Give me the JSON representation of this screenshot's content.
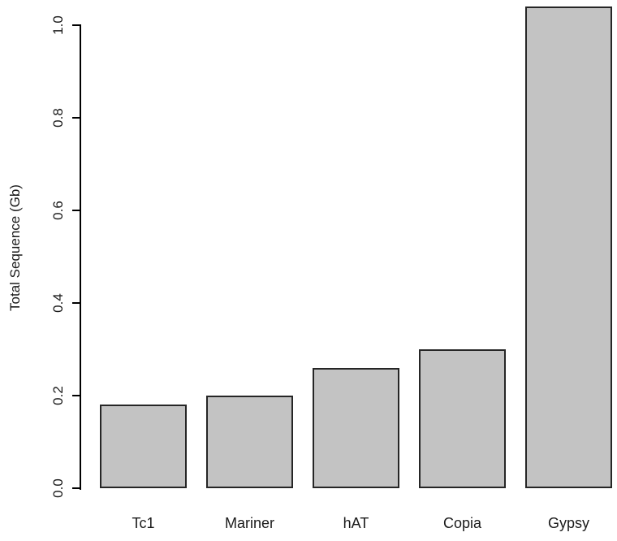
{
  "chart_data": {
    "type": "bar",
    "categories": [
      "Tc1",
      "Mariner",
      "hAT",
      "Copia",
      "Gypsy"
    ],
    "values": [
      0.18,
      0.2,
      0.26,
      0.3,
      1.04
    ],
    "title": "",
    "xlabel": "",
    "ylabel": "Total Sequence (Gb)",
    "ylim": [
      0,
      1.05
    ],
    "yticks": [
      0.0,
      0.2,
      0.4,
      0.6,
      0.8,
      1.0
    ],
    "ytick_labels": [
      "0.0",
      "0.2",
      "0.4",
      "0.6",
      "0.8",
      "1.0"
    ],
    "grid": false,
    "legend": false,
    "colors": {
      "bar_fill": "#c3c3c3",
      "bar_border": "#262626",
      "axis": "#000000",
      "background": "#ffffff"
    }
  }
}
